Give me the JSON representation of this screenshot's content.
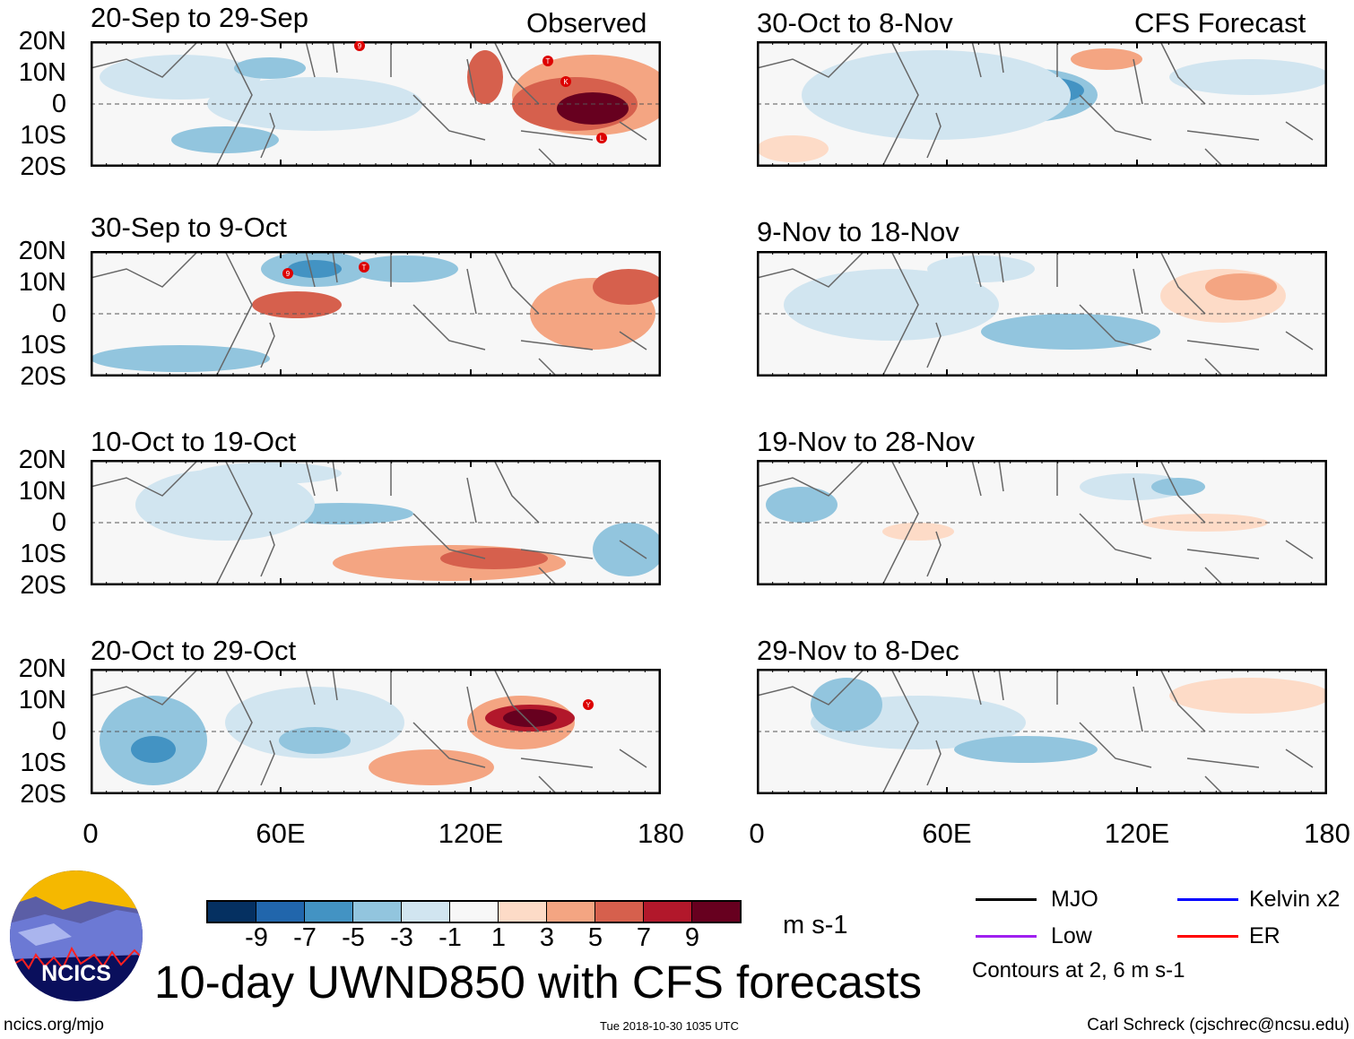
{
  "panels": [
    {
      "title": "20-Sep to 29-Sep",
      "tag": "Observed",
      "storms": [
        "9",
        "T",
        "K",
        "L"
      ]
    },
    {
      "title": "30-Sep to 9-Oct",
      "storms": [
        "9",
        "T"
      ]
    },
    {
      "title": "10-Oct to 19-Oct",
      "storms": []
    },
    {
      "title": "20-Oct to 29-Oct",
      "storms": [
        "Y"
      ]
    },
    {
      "title": "30-Oct to 8-Nov",
      "tag": "CFS Forecast",
      "storms": []
    },
    {
      "title": "9-Nov to 18-Nov",
      "storms": []
    },
    {
      "title": "19-Nov to 28-Nov",
      "storms": []
    },
    {
      "title": "29-Nov to 8-Dec",
      "storms": []
    }
  ],
  "lat_labels": [
    "20N",
    "10N",
    "0",
    "10S",
    "20S"
  ],
  "lon_labels": [
    "0",
    "60E",
    "120E",
    "180"
  ],
  "colorbar": {
    "colors": [
      "#053061",
      "#2166ac",
      "#4393c3",
      "#92c5de",
      "#d1e5f0",
      "#f7f7f7",
      "#fddbc7",
      "#f4a582",
      "#d6604d",
      "#b2182b",
      "#67001f"
    ],
    "labels": [
      "-9",
      "-7",
      "-5",
      "-3",
      "-1",
      "1",
      "3",
      "5",
      "7",
      "9"
    ],
    "units": "m s-1"
  },
  "legend": {
    "items": [
      {
        "label": "MJO",
        "color": "#000000"
      },
      {
        "label": "Kelvin x2",
        "color": "#0000ff"
      },
      {
        "label": "Low",
        "color": "#a020f0"
      },
      {
        "label": "ER",
        "color": "#ff0000"
      }
    ],
    "note": "Contours at 2, 6 m s-1"
  },
  "main_title": "10-day UWND850 with CFS forecasts",
  "logo_text": "NCICS",
  "footer": {
    "url": "ncics.org/mjo",
    "timestamp": "Tue 2018-10-30 1035 UTC",
    "credit": "Carl Schreck (cjschrec@ncsu.edu)"
  }
}
